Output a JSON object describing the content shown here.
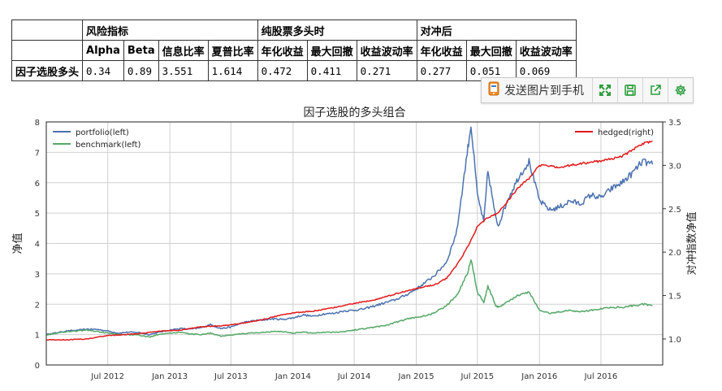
{
  "table": {
    "groups": [
      "风险指标",
      "纯股票多头时",
      "对冲后"
    ],
    "columns": [
      "Alpha",
      "Beta",
      "信息比率",
      "夏普比率",
      "年化收益",
      "最大回撤",
      "收益波动率",
      "年化收益",
      "最大回撤",
      "收益波动率"
    ],
    "row_label": "因子选股多头",
    "values": [
      "0.34",
      "0.89",
      "3.551",
      "1.614",
      "0.472",
      "0.411",
      "0.271",
      "0.277",
      "0.051",
      "0.069"
    ]
  },
  "toolbar": {
    "send_label": "发送图片到手机",
    "icons": [
      "phone-icon",
      "fullscreen-icon",
      "save-icon",
      "export-icon",
      "gear-icon"
    ],
    "accent": "#2e9e3e"
  },
  "chart_data": {
    "type": "line",
    "title": "因子选股的多头组合",
    "ylabel": "净值",
    "ylabel_right": "对冲指数净值",
    "x_ticks": [
      "Jul 2012",
      "Jan 2013",
      "Jul 2013",
      "Jan 2014",
      "Jul 2014",
      "Jan 2015",
      "Jul 2015",
      "Jan 2016",
      "Jul 2016"
    ],
    "x_range": [
      "2012-01",
      "2016-12"
    ],
    "ylim": [
      0,
      8
    ],
    "y_ticks": [
      "0",
      "1",
      "2",
      "3",
      "4",
      "5",
      "6",
      "7",
      "8"
    ],
    "ylim_right": [
      0.7,
      3.5
    ],
    "y_ticks_right": [
      "1.0",
      "1.5",
      "2.0",
      "2.5",
      "3.0",
      "3.5"
    ],
    "grid": true,
    "legend_left": "top-left",
    "legend_right": "top-right",
    "series": [
      {
        "name": "portfolio(left)",
        "axis": "left",
        "color": "#4c72b0",
        "points": [
          [
            "2012-01",
            1.0
          ],
          [
            "2012-02",
            1.06
          ],
          [
            "2012-03",
            1.12
          ],
          [
            "2012-04",
            1.14
          ],
          [
            "2012-05",
            1.18
          ],
          [
            "2012-06",
            1.17
          ],
          [
            "2012-07",
            1.12
          ],
          [
            "2012-08",
            1.05
          ],
          [
            "2012-09",
            1.08
          ],
          [
            "2012-10",
            1.07
          ],
          [
            "2012-11",
            1.0
          ],
          [
            "2012-12",
            1.08
          ],
          [
            "2013-01",
            1.15
          ],
          [
            "2013-02",
            1.2
          ],
          [
            "2013-03",
            1.18
          ],
          [
            "2013-04",
            1.22
          ],
          [
            "2013-05",
            1.33
          ],
          [
            "2013-06",
            1.2
          ],
          [
            "2013-07",
            1.25
          ],
          [
            "2013-08",
            1.38
          ],
          [
            "2013-09",
            1.45
          ],
          [
            "2013-10",
            1.48
          ],
          [
            "2013-11",
            1.52
          ],
          [
            "2013-12",
            1.5
          ],
          [
            "2014-01",
            1.55
          ],
          [
            "2014-02",
            1.65
          ],
          [
            "2014-03",
            1.6
          ],
          [
            "2014-04",
            1.68
          ],
          [
            "2014-05",
            1.7
          ],
          [
            "2014-06",
            1.78
          ],
          [
            "2014-07",
            1.8
          ],
          [
            "2014-08",
            1.85
          ],
          [
            "2014-09",
            1.95
          ],
          [
            "2014-10",
            2.05
          ],
          [
            "2014-11",
            2.15
          ],
          [
            "2014-12",
            2.3
          ],
          [
            "2015-01",
            2.5
          ],
          [
            "2015-02",
            2.75
          ],
          [
            "2015-03",
            3.0
          ],
          [
            "2015-04",
            3.4
          ],
          [
            "2015-05",
            4.4
          ],
          [
            "2015-06",
            7.0
          ],
          [
            "2015-06-12",
            7.9
          ],
          [
            "2015-07",
            5.6
          ],
          [
            "2015-07-20",
            4.7
          ],
          [
            "2015-08",
            6.4
          ],
          [
            "2015-08-25",
            4.8
          ],
          [
            "2015-09",
            4.6
          ],
          [
            "2015-10",
            5.5
          ],
          [
            "2015-11",
            6.2
          ],
          [
            "2015-12",
            6.7
          ],
          [
            "2016-01",
            5.4
          ],
          [
            "2016-02",
            5.1
          ],
          [
            "2016-03",
            5.2
          ],
          [
            "2016-04",
            5.4
          ],
          [
            "2016-05",
            5.3
          ],
          [
            "2016-06",
            5.6
          ],
          [
            "2016-07",
            5.5
          ],
          [
            "2016-08",
            5.8
          ],
          [
            "2016-09",
            6.0
          ],
          [
            "2016-10",
            6.3
          ],
          [
            "2016-11",
            6.7
          ],
          [
            "2016-12",
            6.6
          ]
        ]
      },
      {
        "name": "benchmark(left)",
        "axis": "left",
        "color": "#55a868",
        "points": [
          [
            "2012-01",
            1.0
          ],
          [
            "2012-02",
            1.05
          ],
          [
            "2012-03",
            1.1
          ],
          [
            "2012-04",
            1.12
          ],
          [
            "2012-05",
            1.15
          ],
          [
            "2012-06",
            1.1
          ],
          [
            "2012-07",
            1.05
          ],
          [
            "2012-08",
            1.0
          ],
          [
            "2012-09",
            1.0
          ],
          [
            "2012-10",
            0.98
          ],
          [
            "2012-11",
            0.92
          ],
          [
            "2012-12",
            1.02
          ],
          [
            "2013-01",
            1.05
          ],
          [
            "2013-02",
            1.08
          ],
          [
            "2013-03",
            1.02
          ],
          [
            "2013-04",
            1.0
          ],
          [
            "2013-05",
            1.05
          ],
          [
            "2013-06",
            0.95
          ],
          [
            "2013-07",
            0.98
          ],
          [
            "2013-08",
            1.03
          ],
          [
            "2013-09",
            1.05
          ],
          [
            "2013-10",
            1.07
          ],
          [
            "2013-11",
            1.1
          ],
          [
            "2013-12",
            1.1
          ],
          [
            "2014-01",
            1.05
          ],
          [
            "2014-02",
            1.08
          ],
          [
            "2014-03",
            1.05
          ],
          [
            "2014-04",
            1.08
          ],
          [
            "2014-05",
            1.08
          ],
          [
            "2014-06",
            1.1
          ],
          [
            "2014-07",
            1.15
          ],
          [
            "2014-08",
            1.2
          ],
          [
            "2014-09",
            1.25
          ],
          [
            "2014-10",
            1.3
          ],
          [
            "2014-11",
            1.4
          ],
          [
            "2014-12",
            1.5
          ],
          [
            "2015-01",
            1.58
          ],
          [
            "2015-02",
            1.62
          ],
          [
            "2015-03",
            1.75
          ],
          [
            "2015-04",
            1.95
          ],
          [
            "2015-05",
            2.3
          ],
          [
            "2015-06",
            3.0
          ],
          [
            "2015-06-12",
            3.5
          ],
          [
            "2015-07",
            2.4
          ],
          [
            "2015-07-20",
            2.05
          ],
          [
            "2015-08",
            2.6
          ],
          [
            "2015-08-25",
            1.95
          ],
          [
            "2015-09",
            1.9
          ],
          [
            "2015-10",
            2.1
          ],
          [
            "2015-11",
            2.3
          ],
          [
            "2015-12",
            2.4
          ],
          [
            "2016-01",
            1.8
          ],
          [
            "2016-02",
            1.7
          ],
          [
            "2016-03",
            1.75
          ],
          [
            "2016-04",
            1.8
          ],
          [
            "2016-05",
            1.75
          ],
          [
            "2016-06",
            1.8
          ],
          [
            "2016-07",
            1.85
          ],
          [
            "2016-08",
            1.9
          ],
          [
            "2016-09",
            1.9
          ],
          [
            "2016-10",
            1.95
          ],
          [
            "2016-11",
            2.0
          ],
          [
            "2016-12",
            1.95
          ]
        ]
      },
      {
        "name": "hedged(right)",
        "axis": "right",
        "color": "#e31a1c",
        "points": [
          [
            "2012-01",
            0.99
          ],
          [
            "2012-03",
            0.99
          ],
          [
            "2012-05",
            1.0
          ],
          [
            "2012-07",
            1.04
          ],
          [
            "2012-10",
            1.06
          ],
          [
            "2012-12",
            1.09
          ],
          [
            "2013-02",
            1.1
          ],
          [
            "2013-04",
            1.14
          ],
          [
            "2013-06",
            1.15
          ],
          [
            "2013-08",
            1.18
          ],
          [
            "2013-10",
            1.22
          ],
          [
            "2013-12",
            1.28
          ],
          [
            "2014-01",
            1.3
          ],
          [
            "2014-03",
            1.32
          ],
          [
            "2014-05",
            1.36
          ],
          [
            "2014-07",
            1.41
          ],
          [
            "2014-09",
            1.45
          ],
          [
            "2014-11",
            1.52
          ],
          [
            "2014-12",
            1.55
          ],
          [
            "2015-01",
            1.58
          ],
          [
            "2015-03",
            1.63
          ],
          [
            "2015-04",
            1.7
          ],
          [
            "2015-05",
            1.85
          ],
          [
            "2015-06",
            2.05
          ],
          [
            "2015-06-20",
            2.2
          ],
          [
            "2015-07",
            2.3
          ],
          [
            "2015-08",
            2.4
          ],
          [
            "2015-09",
            2.45
          ],
          [
            "2015-10",
            2.6
          ],
          [
            "2015-11",
            2.75
          ],
          [
            "2015-12",
            2.85
          ],
          [
            "2016-01",
            3.0
          ],
          [
            "2016-03",
            2.98
          ],
          [
            "2016-05",
            3.02
          ],
          [
            "2016-07",
            3.05
          ],
          [
            "2016-09",
            3.1
          ],
          [
            "2016-11",
            3.25
          ],
          [
            "2016-12",
            3.28
          ]
        ]
      }
    ]
  }
}
